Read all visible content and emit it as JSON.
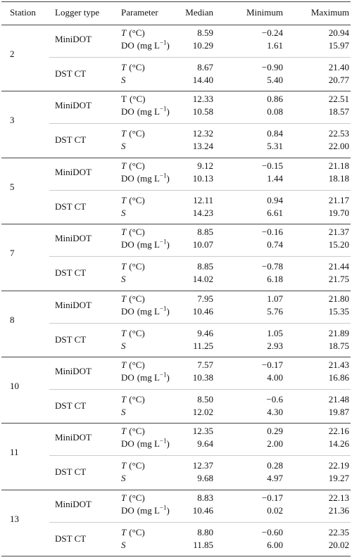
{
  "table": {
    "header": [
      "Station",
      "Logger type",
      "Parameter",
      "Median",
      "Minimum",
      "Maximum"
    ],
    "stations": [
      {
        "station": "2",
        "loggers": [
          {
            "type": "MiniDOT",
            "rows": [
              [
                {
                  "symbol": "T",
                  "italic": true,
                  "unit": "(°C)"
                },
                "8.59",
                "−0.24",
                "20.94"
              ],
              [
                {
                  "symbol": "DO",
                  "italic": false,
                  "unit": "(mg L",
                  "exponent": "−1",
                  "unit_close": ")"
                },
                "10.29",
                "1.61",
                "15.97"
              ]
            ]
          },
          {
            "type": "DST CT",
            "rows": [
              [
                {
                  "symbol": "T",
                  "italic": true,
                  "unit": "(°C)"
                },
                "8.67",
                "−0.90",
                "21.40"
              ],
              [
                {
                  "symbol": "S",
                  "italic": true
                },
                "14.40",
                "5.40",
                "20.77"
              ]
            ]
          }
        ]
      },
      {
        "station": "3",
        "loggers": [
          {
            "type": "MiniDOT",
            "rows": [
              [
                {
                  "symbol": "T",
                  "italic": false,
                  "unit": "(°C)"
                },
                "12.33",
                "0.86",
                "22.51"
              ],
              [
                {
                  "symbol": "DO",
                  "italic": false,
                  "unit": "(mg L",
                  "exponent": "−1",
                  "unit_close": ")"
                },
                "10.58",
                "0.08",
                "18.57"
              ]
            ]
          },
          {
            "type": "DST CT",
            "rows": [
              [
                {
                  "symbol": "T",
                  "italic": true,
                  "unit": "(°C)"
                },
                "12.32",
                "0.84",
                "22.53"
              ],
              [
                {
                  "symbol": "S",
                  "italic": true
                },
                "13.24",
                "5.31",
                "22.00"
              ]
            ]
          }
        ]
      },
      {
        "station": "5",
        "loggers": [
          {
            "type": "MiniDOT",
            "rows": [
              [
                {
                  "symbol": "T",
                  "italic": true,
                  "unit": "(°C)"
                },
                "9.12",
                "−0.15",
                "21.18"
              ],
              [
                {
                  "symbol": "DO",
                  "italic": false,
                  "unit": "(mg L",
                  "exponent": "−1",
                  "unit_close": ")"
                },
                "10.13",
                "1.44",
                "18.18"
              ]
            ]
          },
          {
            "type": "DST CT",
            "rows": [
              [
                {
                  "symbol": "T",
                  "italic": true,
                  "unit": "(°C)"
                },
                "12.11",
                "0.94",
                "21.17"
              ],
              [
                {
                  "symbol": "S",
                  "italic": true
                },
                "14.23",
                "6.61",
                "19.70"
              ]
            ]
          }
        ]
      },
      {
        "station": "7",
        "loggers": [
          {
            "type": "MiniDOT",
            "rows": [
              [
                {
                  "symbol": "T",
                  "italic": true,
                  "unit": "(°C)"
                },
                "8.85",
                "−0.16",
                "21.37"
              ],
              [
                {
                  "symbol": "DO",
                  "italic": false,
                  "unit": "(mg L",
                  "exponent": "−1",
                  "unit_close": ")"
                },
                "10.07",
                "0.74",
                "15.20"
              ]
            ]
          },
          {
            "type": "DST CT",
            "rows": [
              [
                {
                  "symbol": "T",
                  "italic": true,
                  "unit": "(°C)"
                },
                "8.85",
                "−0.78",
                "21.44"
              ],
              [
                {
                  "symbol": "S",
                  "italic": true
                },
                "14.02",
                "6.18",
                "21.75"
              ]
            ]
          }
        ]
      },
      {
        "station": "8",
        "loggers": [
          {
            "type": "MiniDOT",
            "rows": [
              [
                {
                  "symbol": "T",
                  "italic": true,
                  "unit": "(°C)"
                },
                "7.95",
                "1.07",
                "21.80"
              ],
              [
                {
                  "symbol": "DO",
                  "italic": false,
                  "unit": "(mg L",
                  "exponent": "−1",
                  "unit_close": ")"
                },
                "10.46",
                "5.76",
                "15.35"
              ]
            ]
          },
          {
            "type": "DST CT",
            "rows": [
              [
                {
                  "symbol": "T",
                  "italic": true,
                  "unit": "(°C)"
                },
                "9.46",
                "1.05",
                "21.89"
              ],
              [
                {
                  "symbol": "S",
                  "italic": true
                },
                "11.25",
                "2.93",
                "18.75"
              ]
            ]
          }
        ]
      },
      {
        "station": "10",
        "loggers": [
          {
            "type": "MiniDOT",
            "rows": [
              [
                {
                  "symbol": "T",
                  "italic": true,
                  "unit": "(°C)"
                },
                "7.57",
                "−0.17",
                "21.43"
              ],
              [
                {
                  "symbol": "DO",
                  "italic": false,
                  "unit": "(mg L",
                  "exponent": "−1",
                  "unit_close": ")"
                },
                "10.38",
                "4.00",
                "16.86"
              ]
            ]
          },
          {
            "type": "DST CT",
            "rows": [
              [
                {
                  "symbol": "T",
                  "italic": true,
                  "unit": "(°C)"
                },
                "8.50",
                "−0.6",
                "21.48"
              ],
              [
                {
                  "symbol": "S",
                  "italic": true
                },
                "12.02",
                "4.30",
                "19.87"
              ]
            ]
          }
        ]
      },
      {
        "station": "11",
        "loggers": [
          {
            "type": "MiniDOT",
            "rows": [
              [
                {
                  "symbol": "T",
                  "italic": true,
                  "unit": "(°C)"
                },
                "12.35",
                "0.29",
                "22.16"
              ],
              [
                {
                  "symbol": "DO",
                  "italic": false,
                  "unit": "(mg L",
                  "exponent": "−1",
                  "unit_close": ")"
                },
                "9.64",
                "2.00",
                "14.26"
              ]
            ]
          },
          {
            "type": "DST CT",
            "rows": [
              [
                {
                  "symbol": "T",
                  "italic": true,
                  "unit": "(°C)"
                },
                "12.37",
                "0.28",
                "22.19"
              ],
              [
                {
                  "symbol": "S",
                  "italic": true
                },
                "9.68",
                "4.97",
                "19.27"
              ]
            ]
          }
        ]
      },
      {
        "station": "13",
        "loggers": [
          {
            "type": "MiniDOT",
            "rows": [
              [
                {
                  "symbol": "T",
                  "italic": true,
                  "unit": "(°C)"
                },
                "8.83",
                "−0.17",
                "22.13"
              ],
              [
                {
                  "symbol": "DO",
                  "italic": false,
                  "unit": "(mg L",
                  "exponent": "−1",
                  "unit_close": ")"
                },
                "10.46",
                "0.02",
                "21.36"
              ]
            ]
          },
          {
            "type": "DST CT",
            "rows": [
              [
                {
                  "symbol": "T",
                  "italic": true,
                  "unit": "(°C)"
                },
                "8.80",
                "−0.60",
                "22.35"
              ],
              [
                {
                  "symbol": "S",
                  "italic": true
                },
                "11.85",
                "6.00",
                "20.02"
              ]
            ]
          }
        ]
      }
    ]
  }
}
